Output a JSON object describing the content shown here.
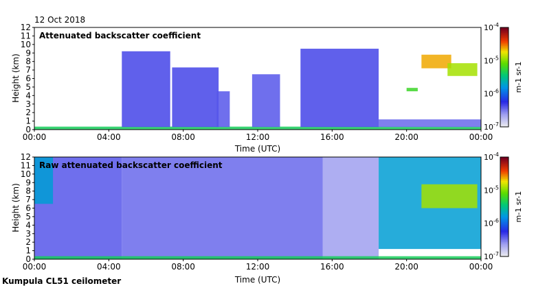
{
  "date": "12 Oct 2018",
  "instrument": "Kumpula CL51 ceilometer",
  "chart_data": [
    {
      "type": "heatmap",
      "title": "Attenuated backscatter coefficient",
      "xlabel": "Time (UTC)",
      "ylabel": "Height (km)",
      "x_ticks": [
        "00:00",
        "04:00",
        "08:00",
        "12:00",
        "16:00",
        "20:00",
        "00:00"
      ],
      "x_range_hours": [
        0,
        24
      ],
      "y_ticks": [
        "0",
        "1",
        "2",
        "3",
        "4",
        "5",
        "6",
        "7",
        "8",
        "9",
        "10",
        "11",
        "12"
      ],
      "ylim": [
        0,
        12
      ],
      "colorbar": {
        "scale": "log",
        "range": [
          1e-07,
          0.0001
        ],
        "ticks": [
          "10-7",
          "10-6",
          "10-5",
          "10-4"
        ],
        "unit": "m-1 sr-1"
      },
      "regions": [
        {
          "t0": 0.0,
          "t1": 24.0,
          "h0": 0.0,
          "h1": 0.35,
          "level": 0.55
        },
        {
          "t0": 4.7,
          "t1": 7.3,
          "h0": 0.3,
          "h1": 9.2,
          "level": 0.22
        },
        {
          "t0": 7.4,
          "t1": 9.9,
          "h0": 0.3,
          "h1": 7.3,
          "level": 0.22
        },
        {
          "t0": 9.8,
          "t1": 10.5,
          "h0": 0.3,
          "h1": 4.5,
          "level": 0.2
        },
        {
          "t0": 11.7,
          "t1": 13.2,
          "h0": 0.3,
          "h1": 6.5,
          "level": 0.2
        },
        {
          "t0": 14.3,
          "t1": 18.5,
          "h0": 0.3,
          "h1": 9.5,
          "level": 0.22
        },
        {
          "t0": 18.5,
          "t1": 24.0,
          "h0": 0.3,
          "h1": 1.2,
          "level": 0.18
        },
        {
          "t0": 20.0,
          "t1": 20.6,
          "h0": 4.5,
          "h1": 4.9,
          "level": 0.6
        },
        {
          "t0": 20.8,
          "t1": 22.4,
          "h0": 7.2,
          "h1": 8.8,
          "level": 0.8
        },
        {
          "t0": 22.2,
          "t1": 23.8,
          "h0": 6.3,
          "h1": 7.8,
          "level": 0.7
        }
      ]
    },
    {
      "type": "heatmap",
      "title": "Raw attenuated backscatter coefficient",
      "xlabel": "Time (UTC)",
      "ylabel": "Height (km)",
      "x_ticks": [
        "00:00",
        "04:00",
        "08:00",
        "12:00",
        "16:00",
        "20:00",
        "00:00"
      ],
      "x_range_hours": [
        0,
        24
      ],
      "y_ticks": [
        "0",
        "1",
        "2",
        "3",
        "4",
        "5",
        "6",
        "7",
        "8",
        "9",
        "10",
        "11",
        "12"
      ],
      "ylim": [
        0,
        12
      ],
      "colorbar": {
        "scale": "log",
        "range": [
          1e-07,
          0.0001
        ],
        "ticks": [
          "10-7",
          "10-6",
          "10-5",
          "10-4"
        ],
        "unit": "m-1 sr-1"
      },
      "regions": [
        {
          "t0": 0.0,
          "t1": 4.7,
          "h0": 0.0,
          "h1": 12.0,
          "level": 0.2
        },
        {
          "t0": 0.0,
          "t1": 1.0,
          "h0": 6.5,
          "h1": 12.0,
          "level": 0.42
        },
        {
          "t0": 4.7,
          "t1": 15.5,
          "h0": 0.0,
          "h1": 12.0,
          "level": 0.18
        },
        {
          "t0": 15.5,
          "t1": 18.5,
          "h0": 0.0,
          "h1": 12.0,
          "level": 0.12
        },
        {
          "t0": 18.5,
          "t1": 24.0,
          "h0": 1.2,
          "h1": 12.0,
          "level": 0.42
        },
        {
          "t0": 20.8,
          "t1": 23.8,
          "h0": 6.0,
          "h1": 8.8,
          "level": 0.7
        },
        {
          "t0": 0.0,
          "t1": 24.0,
          "h0": 0.0,
          "h1": 0.35,
          "level": 0.55
        }
      ]
    }
  ]
}
